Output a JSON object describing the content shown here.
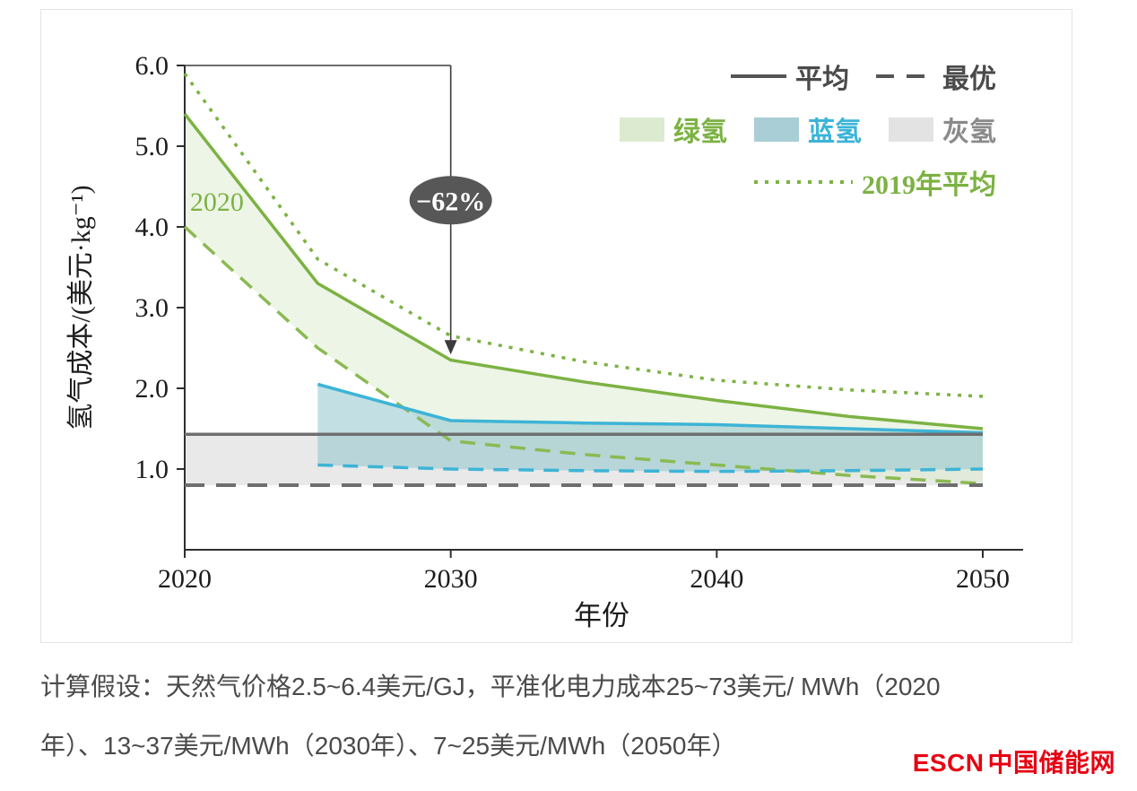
{
  "chart_data": {
    "type": "line",
    "title": "",
    "xlabel": "年份",
    "ylabel": "氢气成本/(美元·kg⁻¹)",
    "xlim": [
      2020,
      2050
    ],
    "ylim": [
      0,
      6
    ],
    "xticks": [
      "2020",
      "2030",
      "2040",
      "2050"
    ],
    "yticks": [
      "1.0",
      "2.0",
      "3.0",
      "4.0",
      "5.0",
      "6.0"
    ],
    "grid": false,
    "legend_position": "top-right",
    "legend": {
      "average": "平均",
      "best": "最优",
      "green_h2": "绿氢",
      "blue_h2": "蓝氢",
      "gray_h2": "灰氢",
      "avg_2019": "2019年平均"
    },
    "series": [
      {
        "name": "绿氢平均",
        "role": "green-average",
        "style": "solid",
        "color": "#7cb243",
        "x": [
          2020,
          2025,
          2030,
          2035,
          2040,
          2045,
          2050
        ],
        "y": [
          5.4,
          3.3,
          2.35,
          2.08,
          1.85,
          1.65,
          1.5
        ]
      },
      {
        "name": "绿氢最优",
        "role": "green-best",
        "style": "dashed",
        "color": "#8aba52",
        "x": [
          2020,
          2025,
          2030,
          2035,
          2040,
          2045,
          2050
        ],
        "y": [
          4.0,
          2.5,
          1.35,
          1.18,
          1.05,
          0.92,
          0.82
        ]
      },
      {
        "name": "蓝氢平均",
        "role": "blue-average",
        "style": "solid",
        "color": "#3db4d6",
        "x": [
          2025,
          2030,
          2035,
          2040,
          2045,
          2050
        ],
        "y": [
          2.05,
          1.6,
          1.57,
          1.55,
          1.5,
          1.45
        ]
      },
      {
        "name": "蓝氢最优",
        "role": "blue-best",
        "style": "dashed",
        "color": "#3db4d6",
        "x": [
          2025,
          2030,
          2035,
          2040,
          2045,
          2050
        ],
        "y": [
          1.05,
          1.0,
          0.98,
          0.97,
          0.98,
          1.0
        ]
      },
      {
        "name": "灰氢平均",
        "role": "gray-average",
        "style": "solid",
        "color": "#6f6f6f",
        "x": [
          2020,
          2050
        ],
        "y": [
          1.43,
          1.43
        ]
      },
      {
        "name": "灰氢最优",
        "role": "gray-best",
        "style": "dashed",
        "color": "#6e6e6e",
        "width": 4,
        "dash": "22 13",
        "x": [
          2020,
          2050
        ],
        "y": [
          0.8,
          0.8
        ]
      },
      {
        "name": "2019年平均",
        "role": "avg-2019",
        "style": "dotted",
        "color": "#7cb243",
        "x": [
          2020,
          2025,
          2030,
          2035,
          2040,
          2045,
          2050
        ],
        "y": [
          5.9,
          3.6,
          2.65,
          2.33,
          2.1,
          1.98,
          1.9
        ]
      }
    ],
    "bands": [
      {
        "key": "gray-hydrogen-band",
        "name": "灰氢",
        "upper": "gray-average",
        "lower": "gray-best",
        "fill": "#e7e7e7",
        "opacity": 0.9
      },
      {
        "key": "green-hydrogen-band",
        "name": "绿氢",
        "upper": "green-average",
        "lower": "green-best",
        "fill": "#dcebcd",
        "opacity": 0.5
      },
      {
        "key": "blue-hydrogen-band",
        "name": "蓝氢",
        "upper": "blue-average",
        "lower": "blue-best",
        "fill": "#8fc4cd",
        "opacity": 0.55
      }
    ],
    "annotation": {
      "drop_label": "−62%",
      "at_year": 2030,
      "from_value": 6.0,
      "to_value": 2.42,
      "label_value": 4.33,
      "start_year_label": "2020",
      "start_label_x": 2020.2,
      "start_label_y": 4.2
    }
  },
  "caption": {
    "lines": [
      "计算假设：天然气价格2.5~6.4美元/GJ，平准化电力成本25~73美元/ MWh（2020",
      "年）、13~37美元/MWh（2030年）、7~25美元/MWh（2050年）"
    ]
  },
  "logo": {
    "brand": "ESCN",
    "site_name": "中国储能网"
  },
  "colors": {
    "green": "#7cb243",
    "blue": "#3db4d6",
    "gray_line": "#6f6f6f",
    "green_fill": "#dcebcd",
    "blue_fill": "#8fc4cd",
    "gray_fill": "#e7e7e7",
    "annotation_bubble": "#575757",
    "logo_red": "#e60012"
  }
}
